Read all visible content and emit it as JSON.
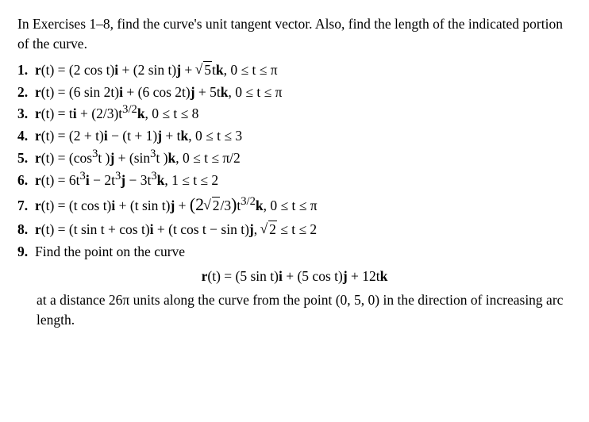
{
  "intro": "In Exercises 1–8, find the curve's unit tangent vector. Also, find the length of the indicated portion of the curve.",
  "ex": {
    "n1": "1.",
    "n2": "2.",
    "n3": "3.",
    "n4": "4.",
    "n5": "5.",
    "n6": "6.",
    "n7": "7.",
    "n8": "8.",
    "n9": "9.",
    "r_eq": "r",
    "of_t": "(t) = ",
    "e1a": "(2 cos t)",
    "e1b": " + (2 sin t)",
    "e1c": " + ",
    "e1d": ",   0 ≤ t ≤ π",
    "sqrt5": "5",
    "e1e": "t",
    "e2a": "(6 sin 2t)",
    "e2b": " + (6 cos 2t)",
    "e2c": " + 5t",
    "e2d": ",   0 ≤ t ≤ π",
    "e3a": "t",
    "e3b": " + (2/3)t",
    "e3sup": "3/2",
    "e3c": ",   0 ≤ t ≤ 8",
    "e4a": "(2 + t)",
    "e4b": " − (t + 1)",
    "e4c": " + t",
    "e4d": ",   0 ≤ t ≤ 3",
    "e5a": "(cos",
    "e5b": "t )",
    "e5c": " + (sin",
    "e5d": "t )",
    "e5e": ",   0 ≤ t ≤ π/2",
    "e6a": "6t",
    "e6b": " − 2t",
    "e6c": " − 3t",
    "e6d": ",   1 ≤ t ≤ 2",
    "e7a": "(t cos t)",
    "e7b": " + (t sin t)",
    "e7c": " + ",
    "e7d": ",   0 ≤ t ≤ π",
    "sqrt2": "2",
    "e7e": "/3",
    "e7f": "t",
    "e7lp": "(2",
    "e7rp": ")",
    "e8a": "(t sin t + cos t)",
    "e8b": " + (t cos t − sin t)",
    "e8c": ",   ",
    "e8d": " ≤ t ≤ 2",
    "e9intro": "Find the point on the curve",
    "e9a": "(5 sin t)",
    "e9b": " + (5 cos t)",
    "e9c": " + 12t",
    "e9after": "at a distance 26π units along the curve from the point (0, 5, 0) in the direction of increasing arc length."
  },
  "vec": {
    "i": "i",
    "j": "j",
    "k": "k"
  },
  "sup3": "3"
}
